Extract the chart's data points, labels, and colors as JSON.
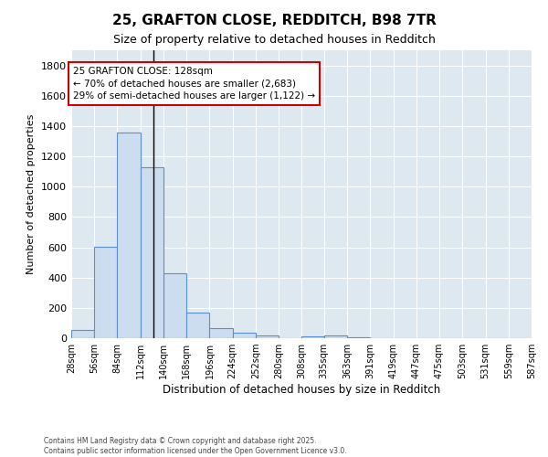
{
  "title_line1": "25, GRAFTON CLOSE, REDDITCH, B98 7TR",
  "title_line2": "Size of property relative to detached houses in Redditch",
  "xlabel": "Distribution of detached houses by size in Redditch",
  "ylabel": "Number of detached properties",
  "bar_edges": [
    28,
    56,
    84,
    112,
    140,
    168,
    196,
    224,
    252,
    280,
    308,
    335,
    363,
    391,
    419,
    447,
    475,
    503,
    531,
    559,
    587
  ],
  "bar_heights": [
    55,
    605,
    1360,
    1130,
    430,
    170,
    65,
    35,
    20,
    0,
    15,
    20,
    5,
    2,
    1,
    1,
    0,
    0,
    0,
    0
  ],
  "bar_color": "#ccddef",
  "bar_edgecolor": "#5b8fd4",
  "ylim": [
    0,
    1900
  ],
  "yticks": [
    0,
    200,
    400,
    600,
    800,
    1000,
    1200,
    1400,
    1600,
    1800
  ],
  "property_size": 128,
  "vline_color": "#000000",
  "annotation_text": "25 GRAFTON CLOSE: 128sqm\n← 70% of detached houses are smaller (2,683)\n29% of semi-detached houses are larger (1,122) →",
  "annotation_box_facecolor": "#ffffff",
  "annotation_box_edgecolor": "#cc0000",
  "plot_bg_color": "#dde8f0",
  "fig_bg_color": "#ffffff",
  "grid_color": "#ffffff",
  "footer_line1": "Contains HM Land Registry data © Crown copyright and database right 2025.",
  "footer_line2": "Contains public sector information licensed under the Open Government Licence v3.0.",
  "tick_labels": [
    "28sqm",
    "56sqm",
    "84sqm",
    "112sqm",
    "140sqm",
    "168sqm",
    "196sqm",
    "224sqm",
    "252sqm",
    "280sqm",
    "308sqm",
    "335sqm",
    "363sqm",
    "391sqm",
    "419sqm",
    "447sqm",
    "475sqm",
    "503sqm",
    "531sqm",
    "559sqm",
    "587sqm"
  ]
}
